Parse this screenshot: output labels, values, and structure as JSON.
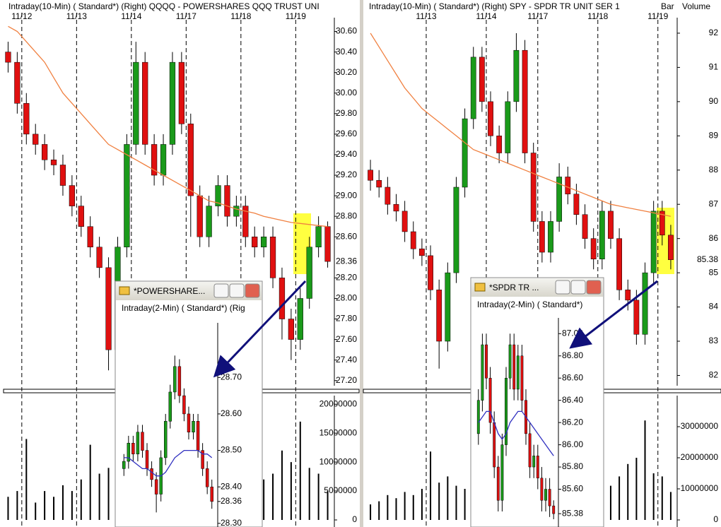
{
  "chart_data": [
    {
      "type": "candlestick",
      "title": "Intraday(10-Min) ( Standard*)   (Right)   QQQQ - POWERSHARES QQQ TRUST UNI",
      "categories": [
        null,
        null,
        "11/12",
        null,
        null,
        null,
        null,
        null,
        "11/13",
        null,
        null,
        null,
        null,
        null,
        "11/14",
        null,
        null,
        null,
        null,
        null,
        "11/17",
        null,
        null,
        null,
        null,
        null,
        "11/18",
        null,
        null,
        null,
        null,
        null,
        "11/19",
        null,
        null,
        null
      ],
      "open": [
        30.4,
        30.3,
        29.9,
        29.6,
        29.5,
        29.35,
        29.3,
        29.1,
        28.9,
        28.7,
        28.5,
        28.3,
        27.5,
        28.5,
        29.5,
        30.3,
        29.5,
        29.2,
        29.5,
        30.3,
        29.7,
        29.0,
        28.6,
        28.9,
        29.1,
        28.8,
        28.9,
        28.6,
        28.5,
        28.6,
        28.2,
        27.8,
        27.6,
        28.0,
        28.5,
        28.7
      ],
      "high": [
        30.5,
        30.4,
        30.0,
        29.7,
        29.6,
        29.45,
        29.4,
        29.2,
        29.0,
        28.8,
        28.6,
        28.4,
        28.6,
        29.6,
        30.5,
        30.4,
        29.6,
        29.6,
        30.4,
        30.4,
        29.8,
        29.1,
        29.0,
        29.2,
        29.2,
        29.0,
        29.0,
        28.7,
        28.7,
        28.7,
        28.3,
        27.9,
        28.1,
        28.6,
        28.8,
        28.75
      ],
      "low": [
        30.2,
        29.8,
        29.5,
        29.4,
        29.25,
        29.2,
        29.0,
        28.8,
        28.6,
        28.4,
        28.2,
        27.3,
        27.4,
        28.4,
        29.4,
        29.4,
        29.1,
        29.1,
        29.4,
        29.6,
        28.6,
        28.5,
        28.5,
        28.8,
        28.7,
        28.7,
        28.5,
        28.4,
        28.4,
        28.1,
        27.6,
        27.4,
        27.5,
        27.9,
        28.4,
        28.3
      ],
      "close": [
        30.3,
        29.9,
        29.6,
        29.5,
        29.35,
        29.3,
        29.1,
        28.9,
        28.7,
        28.5,
        28.3,
        27.5,
        28.5,
        29.5,
        30.3,
        29.5,
        29.2,
        29.5,
        30.3,
        29.7,
        29.0,
        28.6,
        28.9,
        29.1,
        28.8,
        28.9,
        28.6,
        28.5,
        28.6,
        28.2,
        27.8,
        27.6,
        28.0,
        28.5,
        28.7,
        28.36
      ],
      "ma": [
        30.65,
        30.6,
        30.5,
        30.4,
        30.3,
        30.15,
        30.0,
        29.9,
        29.8,
        29.7,
        29.6,
        29.5,
        29.45,
        29.4,
        29.35,
        29.3,
        29.25,
        29.2,
        29.15,
        29.1,
        29.05,
        29.0,
        28.95,
        28.93,
        28.9,
        28.87,
        28.85,
        28.83,
        28.8,
        28.78,
        28.76,
        28.74,
        28.73,
        28.72,
        28.71,
        28.7
      ],
      "volume": [
        4000000,
        5000000,
        14000000,
        3000000,
        5000000,
        4000000,
        6000000,
        5000000,
        7000000,
        13000000,
        8000000,
        9000000,
        7000000,
        8000000,
        15000000,
        6000000,
        5000000,
        4000000,
        6000000,
        5000000,
        14000000,
        7000000,
        5000000,
        6000000,
        4000000,
        5000000,
        9000000,
        6000000,
        7000000,
        8000000,
        12000000,
        10000000,
        17000000,
        9000000,
        8000000,
        5000000
      ],
      "up_color": "#1a9a1a",
      "down_color": "#e01010",
      "ma_color": "#f08040",
      "ylim": [
        27.15,
        30.7
      ],
      "yticks": [
        {
          "value": 27.2,
          "label": "27.20"
        },
        {
          "value": 27.4,
          "label": "27.40"
        },
        {
          "value": 27.6,
          "label": "27.60"
        },
        {
          "value": 27.8,
          "label": "27.80"
        },
        {
          "value": 28.0,
          "label": "28.00"
        },
        {
          "value": 28.2,
          "label": "28.20"
        },
        {
          "value": 28.6,
          "label": "28.60"
        },
        {
          "value": 28.8,
          "label": "28.80"
        },
        {
          "value": 29.0,
          "label": "29.00"
        },
        {
          "value": 29.2,
          "label": "29.20"
        },
        {
          "value": 29.4,
          "label": "29.40"
        },
        {
          "value": 29.6,
          "label": "29.60"
        },
        {
          "value": 29.8,
          "label": "29.80"
        },
        {
          "value": 30.0,
          "label": "30.00"
        },
        {
          "value": 30.2,
          "label": "30.20"
        },
        {
          "value": 30.4,
          "label": "30.40"
        },
        {
          "value": 30.6,
          "label": "30.60"
        }
      ],
      "last_price": 28.36,
      "volume_ylim": [
        0,
        21500000
      ],
      "volume_yticks": [
        0,
        5000000,
        10000000,
        15000000,
        20000000
      ]
    },
    {
      "type": "candlestick",
      "title": "Intraday(10-Min) ( Standard*)   (Right)   SPY - SPDR TR UNIT SER 1",
      "header_extra": [
        "Bar",
        "Volume"
      ],
      "categories": [
        null,
        null,
        null,
        null,
        null,
        null,
        null,
        "11/13",
        null,
        null,
        null,
        null,
        null,
        null,
        "11/14",
        null,
        null,
        null,
        null,
        null,
        "11/17",
        null,
        null,
        null,
        null,
        null,
        null,
        "11/18",
        null,
        null,
        null,
        null,
        null,
        null,
        "11/19",
        null
      ],
      "open": [
        88.0,
        87.7,
        87.5,
        87.0,
        86.8,
        86.2,
        85.7,
        85.5,
        84.5,
        83.0,
        85.0,
        87.5,
        89.5,
        91.3,
        90.0,
        89.0,
        88.5,
        90.0,
        91.5,
        88.5,
        86.5,
        85.6,
        86.5,
        87.8,
        87.3,
        86.7,
        86.0,
        85.4,
        86.8,
        86.0,
        84.5,
        84.2,
        83.2,
        85.0,
        86.8,
        86.1
      ],
      "high": [
        88.3,
        88.0,
        87.8,
        87.3,
        87.1,
        86.5,
        86.0,
        85.8,
        84.8,
        85.3,
        87.8,
        89.8,
        91.6,
        91.6,
        90.3,
        89.3,
        90.3,
        92.0,
        91.8,
        88.8,
        86.8,
        86.8,
        88.2,
        88.1,
        87.6,
        87.0,
        86.3,
        87.1,
        87.1,
        86.3,
        84.8,
        84.5,
        85.3,
        87.1,
        87.1,
        86.4
      ],
      "low": [
        87.4,
        87.2,
        86.7,
        86.5,
        85.9,
        85.4,
        85.2,
        84.2,
        82.2,
        82.7,
        84.7,
        87.2,
        89.2,
        89.7,
        88.7,
        88.2,
        88.2,
        89.7,
        88.2,
        86.2,
        85.3,
        85.3,
        86.2,
        87.0,
        86.4,
        85.7,
        85.1,
        85.1,
        85.7,
        84.2,
        83.9,
        82.9,
        82.9,
        84.7,
        85.8,
        85.1
      ],
      "close": [
        87.7,
        87.5,
        87.0,
        86.8,
        86.2,
        85.7,
        85.5,
        84.5,
        83.0,
        85.0,
        87.5,
        89.5,
        91.3,
        90.0,
        89.0,
        88.5,
        90.0,
        91.5,
        88.5,
        86.5,
        85.6,
        86.5,
        87.8,
        87.3,
        86.7,
        86.0,
        85.4,
        86.8,
        86.0,
        84.5,
        84.2,
        83.2,
        85.0,
        86.8,
        86.1,
        85.38
      ],
      "ma": [
        92.0,
        91.6,
        91.2,
        90.8,
        90.4,
        90.1,
        89.8,
        89.6,
        89.4,
        89.2,
        89.0,
        88.8,
        88.6,
        88.5,
        88.4,
        88.3,
        88.2,
        88.1,
        88.0,
        87.9,
        87.8,
        87.7,
        87.6,
        87.5,
        87.4,
        87.3,
        87.2,
        87.1,
        87.0,
        86.95,
        86.9,
        86.85,
        86.8,
        86.75,
        86.7,
        86.65
      ],
      "volume": [
        5000000,
        6000000,
        8000000,
        7000000,
        9000000,
        8000000,
        10000000,
        22000000,
        12000000,
        14000000,
        11000000,
        10000000,
        9000000,
        8000000,
        25000000,
        12000000,
        10000000,
        13000000,
        11000000,
        9000000,
        20000000,
        10000000,
        12000000,
        9000000,
        8000000,
        10000000,
        15000000,
        12000000,
        11000000,
        14000000,
        18000000,
        20000000,
        32000000,
        15000000,
        14000000,
        9000000
      ],
      "up_color": "#1a9a1a",
      "down_color": "#e01010",
      "ma_color": "#f08040",
      "ylim": [
        81.7,
        92.35
      ],
      "yticks": [
        82,
        83,
        84,
        85,
        86,
        87,
        88,
        89,
        90,
        91,
        92
      ],
      "last_price": 85.38,
      "volume_ylim": [
        0,
        40000000
      ],
      "volume_yticks": [
        0,
        10000000,
        20000000,
        30000000
      ]
    },
    {
      "type": "candlestick",
      "window_title": "*POWERSHARE...",
      "title": "Intraday(2-Min) ( Standard*)   (Rig",
      "open": [
        28.45,
        28.47,
        28.52,
        28.49,
        28.55,
        28.5,
        28.45,
        28.42,
        28.38,
        28.48,
        28.58,
        28.66,
        28.73,
        28.65,
        28.6,
        28.55,
        28.58,
        28.5,
        28.45,
        28.4
      ],
      "high": [
        28.49,
        28.54,
        28.54,
        28.57,
        28.57,
        28.52,
        28.47,
        28.44,
        28.5,
        28.6,
        28.68,
        28.76,
        28.75,
        28.67,
        28.62,
        28.6,
        28.6,
        28.52,
        28.47,
        28.42
      ],
      "low": [
        28.43,
        28.45,
        28.47,
        28.47,
        28.48,
        28.43,
        28.4,
        28.33,
        28.36,
        28.46,
        28.56,
        28.64,
        28.63,
        28.58,
        28.53,
        28.53,
        28.48,
        28.43,
        28.38,
        28.34
      ],
      "close": [
        28.47,
        28.52,
        28.49,
        28.55,
        28.5,
        28.45,
        28.42,
        28.38,
        28.48,
        28.58,
        28.66,
        28.73,
        28.65,
        28.6,
        28.55,
        28.58,
        28.5,
        28.45,
        28.4,
        28.36
      ],
      "ma": [
        28.48,
        28.48,
        28.47,
        28.46,
        28.45,
        28.45,
        28.44,
        28.43,
        28.43,
        28.44,
        28.46,
        28.48,
        28.49,
        28.5,
        28.5,
        28.5,
        28.5,
        28.49,
        28.49,
        28.48
      ],
      "up_color": "#1a9a1a",
      "down_color": "#e01010",
      "ma_color": "#3030c0",
      "ylim": [
        28.29,
        28.84
      ],
      "yticks": [
        {
          "value": 28.3,
          "label": "28.30"
        },
        28.36,
        {
          "value": 28.4,
          "label": "28.40"
        },
        {
          "value": 28.5,
          "label": "28.50"
        },
        {
          "value": 28.6,
          "label": "28.60"
        },
        {
          "value": 28.7,
          "label": "28.70"
        }
      ]
    },
    {
      "type": "candlestick",
      "window_title": "*SPDR TR ...",
      "title": "Intraday(2-Min) ( Standard*)",
      "open": [
        86.1,
        86.4,
        86.9,
        86.6,
        86.2,
        85.8,
        85.5,
        86.0,
        86.6,
        86.9,
        86.5,
        86.8,
        86.4,
        86.1,
        85.8,
        85.9,
        85.7,
        85.5,
        85.6,
        85.45
      ],
      "high": [
        86.5,
        87.0,
        87.0,
        86.7,
        86.3,
        85.9,
        86.1,
        86.7,
        87.0,
        87.0,
        86.9,
        86.9,
        86.5,
        86.2,
        86.0,
        86.0,
        85.8,
        85.7,
        85.7,
        85.5
      ],
      "low": [
        86.0,
        86.3,
        86.5,
        86.1,
        85.7,
        85.4,
        85.4,
        85.9,
        86.5,
        86.4,
        86.4,
        86.3,
        86.0,
        85.7,
        85.7,
        85.6,
        85.4,
        85.4,
        85.35,
        85.33
      ],
      "close": [
        86.4,
        86.9,
        86.6,
        86.2,
        85.8,
        85.5,
        86.0,
        86.6,
        86.9,
        86.5,
        86.8,
        86.4,
        86.1,
        85.8,
        85.9,
        85.7,
        85.5,
        85.6,
        85.45,
        85.38
      ],
      "ma": [
        86.2,
        86.25,
        86.3,
        86.3,
        86.2,
        86.1,
        86.05,
        86.1,
        86.2,
        86.25,
        86.3,
        86.3,
        86.25,
        86.2,
        86.15,
        86.1,
        86.05,
        86.0,
        85.95,
        85.9
      ],
      "up_color": "#1a9a1a",
      "down_color": "#e01010",
      "ma_color": "#3030c0",
      "ylim": [
        85.26,
        87.11
      ],
      "yticks": [
        85.38,
        {
          "value": 85.6,
          "label": "85.60"
        },
        {
          "value": 85.8,
          "label": "85.80"
        },
        {
          "value": 86.0,
          "label": "86.00"
        },
        {
          "value": 86.2,
          "label": "86.20"
        },
        {
          "value": 86.4,
          "label": "86.40"
        },
        {
          "value": 86.6,
          "label": "86.60"
        },
        {
          "value": 86.8,
          "label": "86.80"
        },
        {
          "value": 87.0,
          "label": "87.00"
        }
      ]
    }
  ]
}
